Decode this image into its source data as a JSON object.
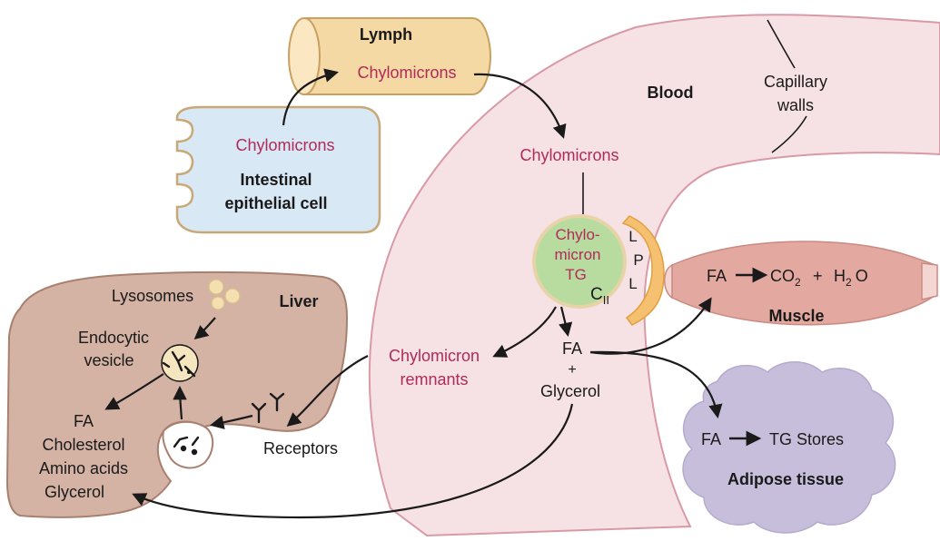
{
  "colors": {
    "blood_fill": "#f6e2e5",
    "blood_stroke": "#d89aa6",
    "lymph_fill": "#f5d9a5",
    "lymph_stroke": "#c9a060",
    "cell_fill": "#d9e8f5",
    "cell_stroke": "#c9a878",
    "liver_fill": "#d4b3a5",
    "liver_stroke": "#a88070",
    "muscle_fill": "#e3a8a0",
    "adipose_fill": "#c7bedb",
    "chylo_fill": "#b8dca0",
    "chylo_stroke": "#e6d4a8",
    "lpl_fill": "#f5c070",
    "label_red": "#b02a5a"
  },
  "labels": {
    "lymph": "Lymph",
    "lymph_chylomicrons": "Chylomicrons",
    "blood": "Blood",
    "capillary_walls_1": "Capillary",
    "capillary_walls_2": "walls",
    "cell_chylomicrons": "Chylomicrons",
    "cell_label_1": "Intestinal",
    "cell_label_2": "epithelial cell",
    "blood_chylomicrons": "Chylomicrons",
    "chylo_tg_1": "Chylo-",
    "chylo_tg_2": "micron",
    "chylo_tg_3": "TG",
    "apo_c": "C",
    "apo_sub": "II",
    "lpl_l1": "L",
    "lpl_p": "P",
    "lpl_l2": "L",
    "muscle_fa": "FA",
    "muscle_co2": "CO",
    "muscle_co2_sub": "2",
    "muscle_plus": "+",
    "muscle_h2o": "H",
    "muscle_h2o_sub": "2",
    "muscle_h2o_o": "O",
    "muscle": "Muscle",
    "fa": "FA",
    "plus": "+",
    "glycerol": "Glycerol",
    "remnants_1": "Chylomicron",
    "remnants_2": "remnants",
    "receptors": "Receptors",
    "liver": "Liver",
    "lysosomes": "Lysosomes",
    "endocytic_1": "Endocytic",
    "endocytic_2": "vesicle",
    "liver_fa": "FA",
    "liver_cholesterol": "Cholesterol",
    "liver_amino": "Amino acids",
    "liver_glycerol": "Glycerol",
    "adipose_fa": "FA",
    "adipose_tg": "TG Stores",
    "adipose": "Adipose tissue"
  }
}
